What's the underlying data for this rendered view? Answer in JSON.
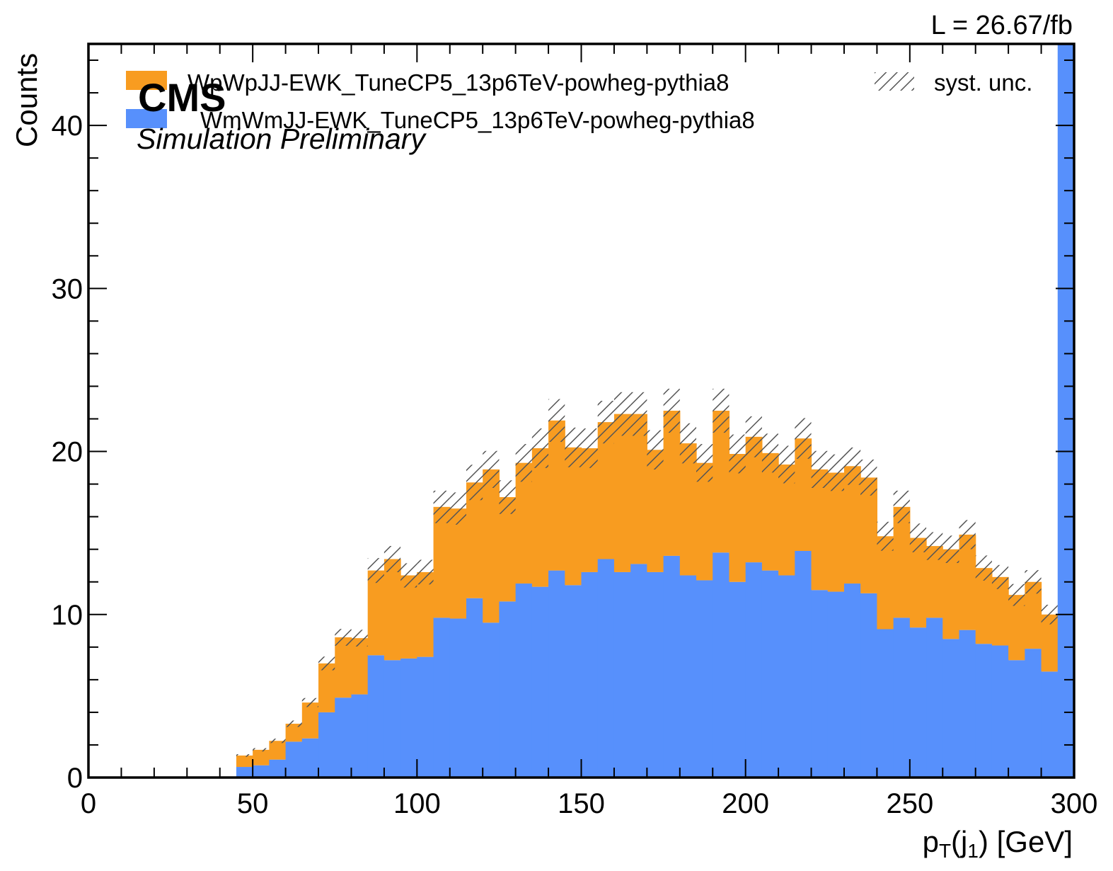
{
  "chart_data": {
    "type": "bar",
    "stacked": true,
    "histogram": true,
    "x_bin_edges_start": 0,
    "x_bin_width": 5,
    "xlim": [
      0,
      300
    ],
    "ylim": [
      0,
      45
    ],
    "xlabel": "p",
    "xlabel_sub": "T",
    "xlabel_rest": "(j",
    "xlabel_sub2": "1",
    "xlabel_end": ") [GeV]",
    "ylabel": "Counts",
    "x_ticks": [
      0,
      50,
      100,
      150,
      200,
      250,
      300
    ],
    "y_ticks": [
      0,
      10,
      20,
      30,
      40
    ],
    "grid": false,
    "legend_placement": "top",
    "overflow_bin": {
      "x_start": 295,
      "series": "WmWmJJ-EWK_TuneCP5_13p6TeV-powheg-pythia8",
      "value_exceeds_ylim": true
    },
    "series": [
      {
        "name": "WmWmJJ-EWK_TuneCP5_13p6TeV-powheg-pythia8",
        "color": "#5790fc",
        "values": [
          0,
          0,
          0,
          0,
          0,
          0,
          0,
          0,
          0,
          0.65,
          0.75,
          1.1,
          2.2,
          2.4,
          4.0,
          4.9,
          5.1,
          7.5,
          7.2,
          7.3,
          7.4,
          9.8,
          9.75,
          11.0,
          9.5,
          10.8,
          11.9,
          11.7,
          12.7,
          11.8,
          12.6,
          13.4,
          12.6,
          13.1,
          12.6,
          13.6,
          12.4,
          12.1,
          13.8,
          12.0,
          13.2,
          12.7,
          12.4,
          13.9,
          11.5,
          11.4,
          11.9,
          11.3,
          9.1,
          9.8,
          9.2,
          9.8,
          8.5,
          9.05,
          8.2,
          8.1,
          7.2,
          7.9,
          6.5
        ]
      },
      {
        "name": "WpWpJJ-EWK_TuneCP5_13p6TeV-powheg-pythia8",
        "color": "#f89c20",
        "values": [
          0,
          0,
          0,
          0,
          0,
          0,
          0,
          0,
          0,
          0.7,
          0.95,
          1.15,
          1.1,
          2.2,
          3.0,
          3.7,
          3.45,
          5.2,
          6.2,
          5.1,
          5.2,
          6.8,
          6.75,
          7.1,
          9.4,
          6.4,
          7.4,
          8.5,
          9.2,
          8.45,
          7.6,
          8.4,
          9.7,
          9.2,
          7.5,
          8.9,
          8.1,
          7.2,
          8.7,
          7.85,
          7.7,
          7.2,
          6.8,
          6.9,
          7.4,
          7.3,
          7.2,
          7.1,
          5.7,
          6.8,
          5.5,
          4.4,
          5.5,
          5.85,
          4.65,
          4.2,
          4.0,
          4.1,
          3.5
        ]
      }
    ],
    "uncertainty_band": {
      "name": "syst. unc.",
      "half_width_fraction": 0.06
    }
  },
  "legend": {
    "items": [
      {
        "label": "WpWpJJ-EWK_TuneCP5_13p6TeV-powheg-pythia8",
        "color": "#f89c20"
      },
      {
        "label": "WmWmJJ-EWK_TuneCP5_13p6TeV-powheg-pythia8",
        "color": "#5790fc"
      },
      {
        "label": "syst. unc.",
        "hatch": "////"
      }
    ]
  },
  "labels": {
    "cms": "CMS",
    "sim": "Simulation Preliminary",
    "lumi": "L = 26.67/fb"
  }
}
